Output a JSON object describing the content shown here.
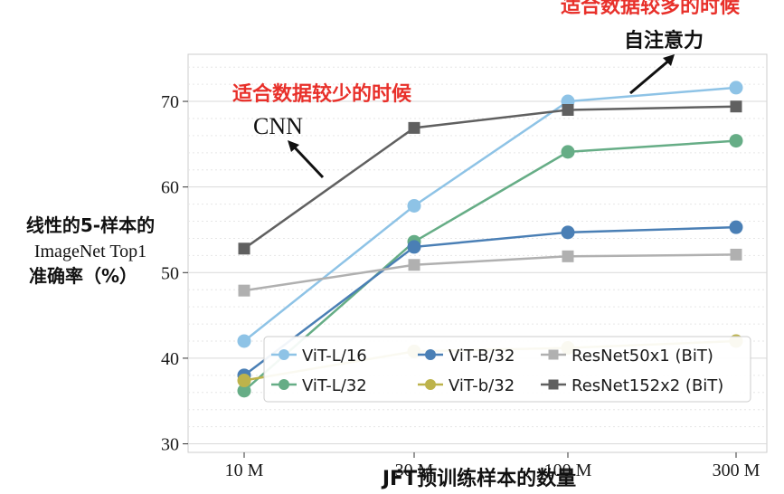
{
  "chart_data": {
    "type": "line",
    "categories": [
      "10 M",
      "30 M",
      "100 M",
      "300 M"
    ],
    "xlabel": "JFT预训练样本的数量",
    "ylabel_lines": [
      "线性的5-样本的",
      "ImageNet Top1",
      "准确率（%）"
    ],
    "yticks": [
      30,
      40,
      50,
      60,
      70
    ],
    "ylim": [
      29,
      75.5
    ],
    "grid": true,
    "legend_position": "lower-right",
    "series": [
      {
        "name": "ViT-L/16",
        "color": "#8ec3e6",
        "marker": "circle",
        "values": [
          42.0,
          57.8,
          70.0,
          71.6
        ]
      },
      {
        "name": "ViT-L/32",
        "color": "#66ad86",
        "marker": "circle",
        "values": [
          36.2,
          53.6,
          64.1,
          65.4
        ]
      },
      {
        "name": "ViT-B/32",
        "color": "#4a7fb5",
        "marker": "circle",
        "values": [
          38.0,
          53.0,
          54.7,
          55.3
        ]
      },
      {
        "name": "ViT-b/32",
        "color": "#bdb34b",
        "marker": "circle",
        "values": [
          37.4,
          40.8,
          41.2,
          42.0
        ]
      },
      {
        "name": "ResNet50x1 (BiT)",
        "color": "#b0b0b0",
        "marker": "square",
        "values": [
          47.9,
          50.9,
          51.9,
          52.1
        ]
      },
      {
        "name": "ResNet152x2 (BiT)",
        "color": "#606060",
        "marker": "square",
        "values": [
          52.8,
          66.9,
          69.0,
          69.4
        ]
      }
    ],
    "legend_order": [
      0,
      2,
      4,
      1,
      3,
      5
    ],
    "annotations": {
      "top_red": "适合数据较多的时候",
      "top_black": "自注意力",
      "left_red": "适合数据较少的时候",
      "left_black": "CNN"
    }
  }
}
